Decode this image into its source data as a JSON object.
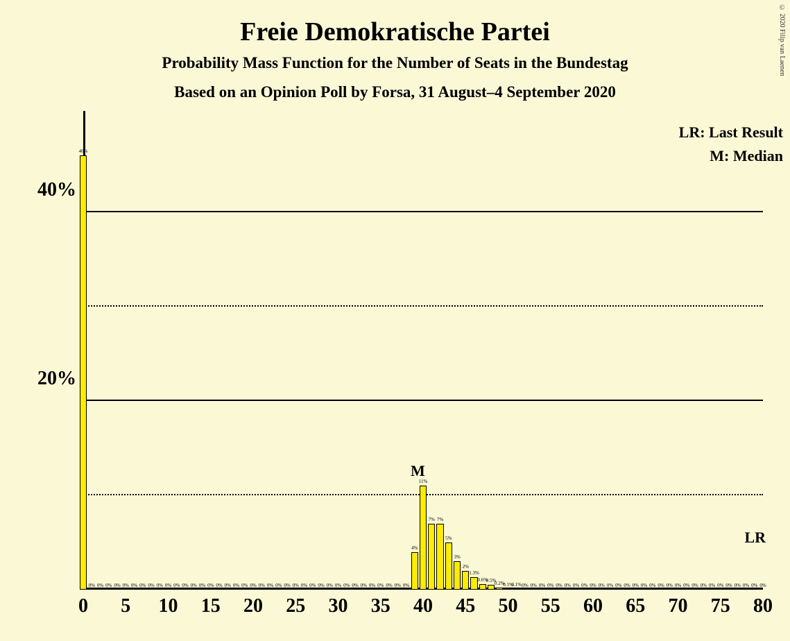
{
  "title": "Freie Demokratische Partei",
  "subtitle1": "Probability Mass Function for the Number of Seats in the Bundestag",
  "subtitle2": "Based on an Opinion Poll by Forsa, 31 August–4 September 2020",
  "copyright": "© 2020 Filip van Laenen",
  "legend_lr": "LR: Last Result",
  "legend_m": "M: Median",
  "marker_m": "M",
  "marker_lr": "LR",
  "chart": {
    "type": "bar",
    "background_color": "#fbf8d6",
    "bar_color": "#fcec01",
    "bar_stroke": "#000000",
    "text_color": "#1a1a1a",
    "grid_color": "#000000",
    "x_min": 0,
    "x_max": 80,
    "x_tick_step": 5,
    "y_min": 0,
    "y_max": 50,
    "y_ticks": [
      20,
      40
    ],
    "y_minor_ticks": [
      10,
      30
    ],
    "median_seat": 40,
    "lr_seat": 80,
    "bars": [
      {
        "seat": 0,
        "pct": 46,
        "label": "46%"
      },
      {
        "seat": 1,
        "pct": 0,
        "label": "0%"
      },
      {
        "seat": 2,
        "pct": 0,
        "label": "0%"
      },
      {
        "seat": 3,
        "pct": 0,
        "label": "0%"
      },
      {
        "seat": 4,
        "pct": 0,
        "label": "0%"
      },
      {
        "seat": 5,
        "pct": 0,
        "label": "0%"
      },
      {
        "seat": 6,
        "pct": 0,
        "label": "0%"
      },
      {
        "seat": 7,
        "pct": 0,
        "label": "0%"
      },
      {
        "seat": 8,
        "pct": 0,
        "label": "0%"
      },
      {
        "seat": 9,
        "pct": 0,
        "label": "0%"
      },
      {
        "seat": 10,
        "pct": 0,
        "label": "0%"
      },
      {
        "seat": 11,
        "pct": 0,
        "label": "0%"
      },
      {
        "seat": 12,
        "pct": 0,
        "label": "0%"
      },
      {
        "seat": 13,
        "pct": 0,
        "label": "0%"
      },
      {
        "seat": 14,
        "pct": 0,
        "label": "0%"
      },
      {
        "seat": 15,
        "pct": 0,
        "label": "0%"
      },
      {
        "seat": 16,
        "pct": 0,
        "label": "0%"
      },
      {
        "seat": 17,
        "pct": 0,
        "label": "0%"
      },
      {
        "seat": 18,
        "pct": 0,
        "label": "0%"
      },
      {
        "seat": 19,
        "pct": 0,
        "label": "0%"
      },
      {
        "seat": 20,
        "pct": 0,
        "label": "0%"
      },
      {
        "seat": 21,
        "pct": 0,
        "label": "0%"
      },
      {
        "seat": 22,
        "pct": 0,
        "label": "0%"
      },
      {
        "seat": 23,
        "pct": 0,
        "label": "0%"
      },
      {
        "seat": 24,
        "pct": 0,
        "label": "0%"
      },
      {
        "seat": 25,
        "pct": 0,
        "label": "0%"
      },
      {
        "seat": 26,
        "pct": 0,
        "label": "0%"
      },
      {
        "seat": 27,
        "pct": 0,
        "label": "0%"
      },
      {
        "seat": 28,
        "pct": 0,
        "label": "0%"
      },
      {
        "seat": 29,
        "pct": 0,
        "label": "0%"
      },
      {
        "seat": 30,
        "pct": 0,
        "label": "0%"
      },
      {
        "seat": 31,
        "pct": 0,
        "label": "0%"
      },
      {
        "seat": 32,
        "pct": 0,
        "label": "0%"
      },
      {
        "seat": 33,
        "pct": 0,
        "label": "0%"
      },
      {
        "seat": 34,
        "pct": 0,
        "label": "0%"
      },
      {
        "seat": 35,
        "pct": 0,
        "label": "0%"
      },
      {
        "seat": 36,
        "pct": 0,
        "label": "0%"
      },
      {
        "seat": 37,
        "pct": 0,
        "label": "0%"
      },
      {
        "seat": 38,
        "pct": 0,
        "label": "0%"
      },
      {
        "seat": 39,
        "pct": 4,
        "label": "4%"
      },
      {
        "seat": 40,
        "pct": 11,
        "label": "11%"
      },
      {
        "seat": 41,
        "pct": 7,
        "label": "7%"
      },
      {
        "seat": 42,
        "pct": 7,
        "label": "7%"
      },
      {
        "seat": 43,
        "pct": 5,
        "label": "5%"
      },
      {
        "seat": 44,
        "pct": 3,
        "label": "3%"
      },
      {
        "seat": 45,
        "pct": 2,
        "label": "2%"
      },
      {
        "seat": 46,
        "pct": 1.3,
        "label": "1.3%"
      },
      {
        "seat": 47,
        "pct": 0.6,
        "label": "0.6%"
      },
      {
        "seat": 48,
        "pct": 0.5,
        "label": "0.5%"
      },
      {
        "seat": 49,
        "pct": 0.2,
        "label": "0.2%"
      },
      {
        "seat": 50,
        "pct": 0.1,
        "label": "0.1%"
      },
      {
        "seat": 51,
        "pct": 0.1,
        "label": "0.1%"
      },
      {
        "seat": 52,
        "pct": 0,
        "label": "0%"
      },
      {
        "seat": 53,
        "pct": 0,
        "label": "0%"
      },
      {
        "seat": 54,
        "pct": 0,
        "label": "0%"
      },
      {
        "seat": 55,
        "pct": 0,
        "label": "0%"
      },
      {
        "seat": 56,
        "pct": 0,
        "label": "0%"
      },
      {
        "seat": 57,
        "pct": 0,
        "label": "0%"
      },
      {
        "seat": 58,
        "pct": 0,
        "label": "0%"
      },
      {
        "seat": 59,
        "pct": 0,
        "label": "0%"
      },
      {
        "seat": 60,
        "pct": 0,
        "label": "0%"
      },
      {
        "seat": 61,
        "pct": 0,
        "label": "0%"
      },
      {
        "seat": 62,
        "pct": 0,
        "label": "0%"
      },
      {
        "seat": 63,
        "pct": 0,
        "label": "0%"
      },
      {
        "seat": 64,
        "pct": 0,
        "label": "0%"
      },
      {
        "seat": 65,
        "pct": 0,
        "label": "0%"
      },
      {
        "seat": 66,
        "pct": 0,
        "label": "0%"
      },
      {
        "seat": 67,
        "pct": 0,
        "label": "0%"
      },
      {
        "seat": 68,
        "pct": 0,
        "label": "0%"
      },
      {
        "seat": 69,
        "pct": 0,
        "label": "0%"
      },
      {
        "seat": 70,
        "pct": 0,
        "label": "0%"
      },
      {
        "seat": 71,
        "pct": 0,
        "label": "0%"
      },
      {
        "seat": 72,
        "pct": 0,
        "label": "0%"
      },
      {
        "seat": 73,
        "pct": 0,
        "label": "0%"
      },
      {
        "seat": 74,
        "pct": 0,
        "label": "0%"
      },
      {
        "seat": 75,
        "pct": 0,
        "label": "0%"
      },
      {
        "seat": 76,
        "pct": 0,
        "label": "0%"
      },
      {
        "seat": 77,
        "pct": 0,
        "label": "0%"
      },
      {
        "seat": 78,
        "pct": 0,
        "label": "0%"
      },
      {
        "seat": 79,
        "pct": 0,
        "label": "0%"
      },
      {
        "seat": 80,
        "pct": 0,
        "label": "0%"
      }
    ]
  }
}
